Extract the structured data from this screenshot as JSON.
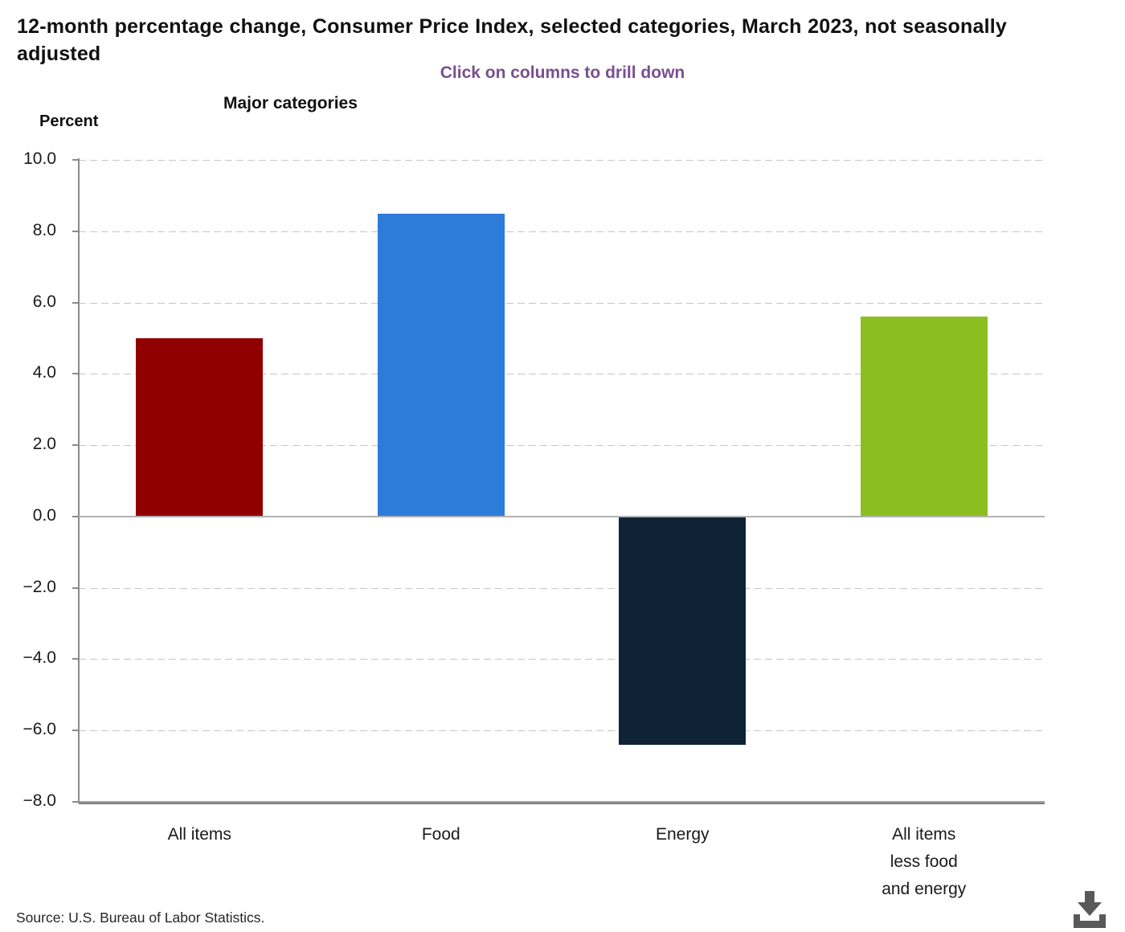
{
  "header": {
    "title": "12-month percentage change, Consumer Price Index, selected categories, March 2023, not seasonally adjusted",
    "subtitle": "Click on columns to drill down",
    "group_label": "Major categories",
    "axis_title": "Percent"
  },
  "chart_data": {
    "type": "bar",
    "title": "12-month percentage change, Consumer Price Index, selected categories, March 2023, not seasonally adjusted",
    "categories": [
      "All items",
      "Food",
      "Energy",
      "All items\nless food\nand energy"
    ],
    "values": [
      5.0,
      8.5,
      -6.4,
      5.6
    ],
    "bar_colors": [
      "#900000",
      "#2d7cd9",
      "#0f2336",
      "#8bbe21"
    ],
    "xlabel": "Major categories",
    "ylabel": "Percent",
    "ylim": [
      -8.0,
      10.0
    ],
    "ytick_step": 2.0,
    "ytick_labels": [
      "10.0",
      "8.0",
      "6.0",
      "4.0",
      "2.0",
      "0.0",
      "−2.0",
      "−4.0",
      "−6.0",
      "−8.0"
    ],
    "grid": "horizontal-dashed",
    "legend": "none"
  },
  "footer": {
    "source": "Source: U.S. Bureau of Labor Statistics.",
    "download_icon": "download-icon"
  },
  "colors": {
    "subtitle_purple": "#7a4e8f",
    "gridline": "#c6c6c6",
    "axis": "#8a8a8a",
    "icon_gray": "#595959"
  }
}
